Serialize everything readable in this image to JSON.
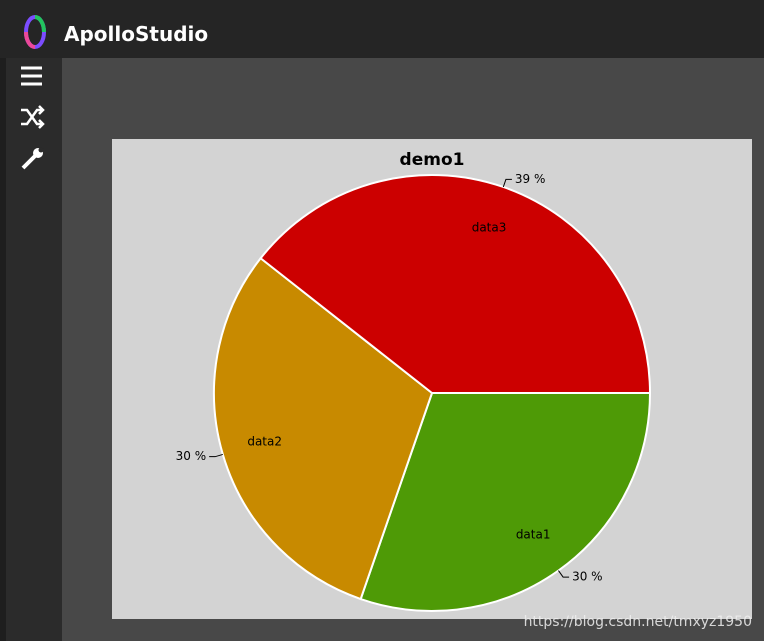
{
  "app": {
    "title": "ApolloStudio"
  },
  "chart_data": {
    "type": "pie",
    "title": "demo1",
    "categories": [
      "data1",
      "data2",
      "data3"
    ],
    "values": [
      30,
      30,
      39
    ],
    "value_labels": [
      "30 %",
      "30 %",
      "39 %"
    ],
    "colors": [
      "#4e9a06",
      "#c88a00",
      "#cc0000"
    ]
  },
  "watermark": "https://blog.csdn.net/tmxyz1950"
}
